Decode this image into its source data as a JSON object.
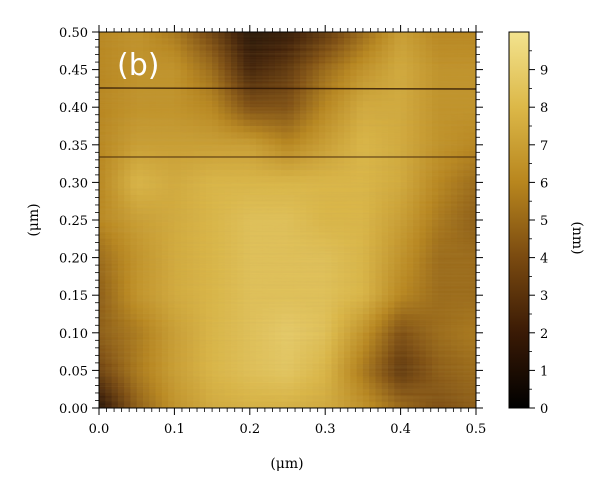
{
  "panel_label": "(b)",
  "chart_data": {
    "type": "heatmap",
    "description_free": true,
    "xlabel": "(μm)",
    "ylabel": "(μm)",
    "colorbar_label": "(nm)",
    "xlim": [
      0.0,
      0.5
    ],
    "ylim": [
      0.0,
      0.5
    ],
    "zlim": [
      0,
      10
    ],
    "x_ticks": [
      0.0,
      0.1,
      0.2,
      0.3,
      0.4,
      0.5
    ],
    "x_tick_labels": [
      "0.0",
      "0.1",
      "0.2",
      "0.3",
      "0.4",
      "0.5"
    ],
    "y_ticks": [
      0.0,
      0.05,
      0.1,
      0.15,
      0.2,
      0.25,
      0.3,
      0.35,
      0.4,
      0.45,
      0.5
    ],
    "y_tick_labels": [
      "0.00",
      "0.05",
      "0.10",
      "0.15",
      "0.20",
      "0.25",
      "0.30",
      "0.35",
      "0.40",
      "0.45",
      "0.50"
    ],
    "colorbar_ticks": [
      0,
      1,
      2,
      3,
      4,
      5,
      6,
      7,
      8,
      9
    ],
    "colorbar_tick_labels": [
      "0",
      "1",
      "2",
      "3",
      "4",
      "5",
      "6",
      "7",
      "8",
      "9"
    ],
    "colormap": [
      "#000000",
      "#3a1a05",
      "#7a4a10",
      "#b8861e",
      "#dcb848",
      "#f3e38e"
    ],
    "grid": false,
    "height_map_coarse": {
      "x": [
        0.0,
        0.05,
        0.1,
        0.15,
        0.2,
        0.25,
        0.3,
        0.35,
        0.4,
        0.45,
        0.5
      ],
      "y": [
        0.0,
        0.05,
        0.1,
        0.15,
        0.2,
        0.25,
        0.3,
        0.35,
        0.4,
        0.45,
        0.5
      ],
      "z_rows_bottom_to_top": [
        [
          1.0,
          4.5,
          6.5,
          7.5,
          7.8,
          7.8,
          7.5,
          6.5,
          5.0,
          4.0,
          4.5
        ],
        [
          3.5,
          5.5,
          7.0,
          8.0,
          8.5,
          8.8,
          8.0,
          5.5,
          3.0,
          4.5,
          5.0
        ],
        [
          4.5,
          5.5,
          7.0,
          8.0,
          8.5,
          9.0,
          8.5,
          6.5,
          4.0,
          5.0,
          5.5
        ],
        [
          4.5,
          6.5,
          7.5,
          8.0,
          8.5,
          8.5,
          8.5,
          8.0,
          6.0,
          5.0,
          5.0
        ],
        [
          5.0,
          6.5,
          7.5,
          8.0,
          8.5,
          8.5,
          8.5,
          8.0,
          6.5,
          5.0,
          5.0
        ],
        [
          6.0,
          7.0,
          7.5,
          8.0,
          8.5,
          8.5,
          8.0,
          8.0,
          7.0,
          5.5,
          4.5
        ],
        [
          6.0,
          8.0,
          7.5,
          8.0,
          8.0,
          8.0,
          8.0,
          8.0,
          7.5,
          6.0,
          5.0
        ],
        [
          6.0,
          7.0,
          7.0,
          7.0,
          7.0,
          6.0,
          7.0,
          8.0,
          7.5,
          6.5,
          6.0
        ],
        [
          6.0,
          6.5,
          6.5,
          6.0,
          4.0,
          4.0,
          6.0,
          7.5,
          7.5,
          6.5,
          6.5
        ],
        [
          6.0,
          6.5,
          6.5,
          5.0,
          2.0,
          3.0,
          5.0,
          6.5,
          7.5,
          6.5,
          6.5
        ],
        [
          6.0,
          6.5,
          5.5,
          3.5,
          1.0,
          1.5,
          3.0,
          5.0,
          7.0,
          6.0,
          6.0
        ]
      ]
    }
  }
}
